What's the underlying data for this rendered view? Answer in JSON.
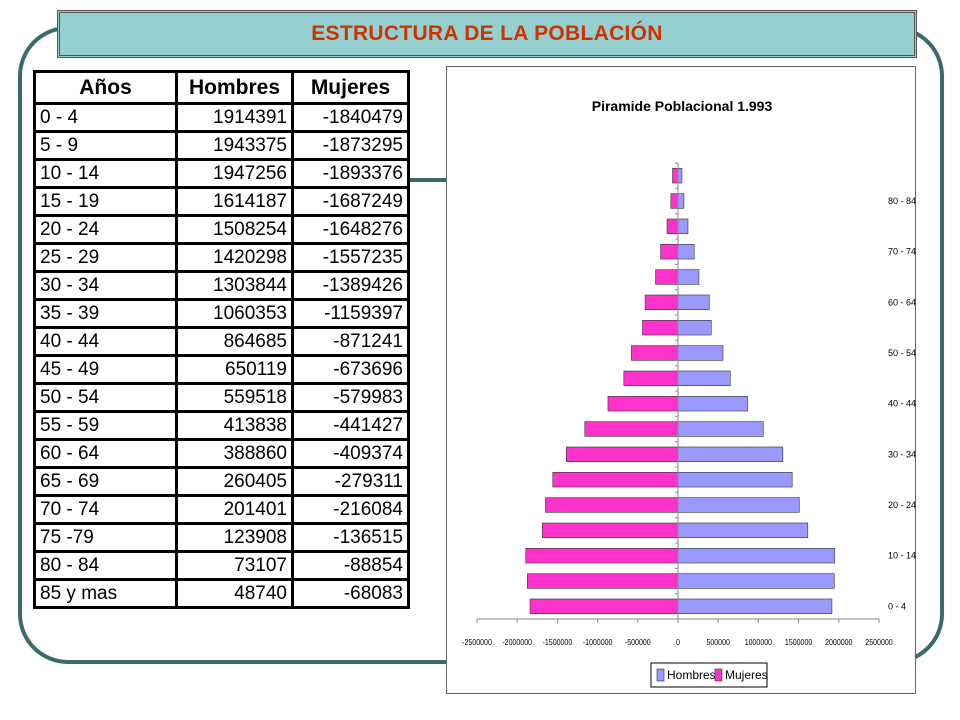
{
  "slide": {
    "title": "ESTRUCTURA DE LA POBLACIÓN",
    "title_color": "#cc3300",
    "title_bg": "#96cfcf",
    "frame_color": "#3a6b6b"
  },
  "table": {
    "headers": [
      "Años",
      "Hombres",
      "Mujeres"
    ],
    "rows": [
      [
        "0 - 4",
        "1914391",
        "-1840479"
      ],
      [
        "5 - 9",
        "1943375",
        "-1873295"
      ],
      [
        "10 - 14",
        "1947256",
        "-1893376"
      ],
      [
        "15 - 19",
        "1614187",
        "-1687249"
      ],
      [
        "20 - 24",
        "1508254",
        "-1648276"
      ],
      [
        "25 - 29",
        "1420298",
        "-1557235"
      ],
      [
        "30 - 34",
        "1303844",
        "-1389426"
      ],
      [
        "35 - 39",
        "1060353",
        "-1159397"
      ],
      [
        "40 - 44",
        "864685",
        "-871241"
      ],
      [
        "45 - 49",
        "650119",
        "-673696"
      ],
      [
        "50 - 54",
        "559518",
        "-579983"
      ],
      [
        "55 - 59",
        "413838",
        "-441427"
      ],
      [
        "60 - 64",
        "388860",
        "-409374"
      ],
      [
        "65 - 69",
        "260405",
        "-279311"
      ],
      [
        "70 - 74",
        "201401",
        "-216084"
      ],
      [
        "75 -79",
        "123908",
        "-136515"
      ],
      [
        "80 - 84",
        "73107",
        "-88854"
      ],
      [
        "85 y mas",
        "48740",
        "-68083"
      ]
    ]
  },
  "chart_data": {
    "type": "bar",
    "orientation": "horizontal",
    "title": "Piramide Poblacional 1.993",
    "categories": [
      "0 - 4",
      "5 - 9",
      "10 - 14",
      "15 - 19",
      "20 - 24",
      "25 - 29",
      "30 - 34",
      "35 - 39",
      "40 - 44",
      "45 - 49",
      "50 - 54",
      "55 - 59",
      "60 - 64",
      "65 - 69",
      "70 - 74",
      "75 -79",
      "80 - 84",
      "85 y mas"
    ],
    "axis_category_labels": [
      "0 - 4",
      "10 - 14",
      "20 - 24",
      "30 - 34",
      "40 - 44",
      "50 - 54",
      "60 - 64",
      "70 - 74",
      "80 - 84"
    ],
    "series": [
      {
        "name": "Hombres",
        "color": "#9999ff",
        "values": [
          1914391,
          1943375,
          1947256,
          1614187,
          1508254,
          1420298,
          1303844,
          1060353,
          864685,
          650119,
          559518,
          413838,
          388860,
          260405,
          201401,
          123908,
          73107,
          48740
        ]
      },
      {
        "name": "Mujeres",
        "color": "#ff33cc",
        "values": [
          -1840479,
          -1873295,
          -1893376,
          -1687249,
          -1648276,
          -1557235,
          -1389426,
          -1159397,
          -871241,
          -673696,
          -579983,
          -441427,
          -409374,
          -279311,
          -216084,
          -136515,
          -88854,
          -68083
        ]
      }
    ],
    "x_ticks": [
      -2500000,
      -2000000,
      -1500000,
      -1000000,
      -500000,
      0,
      500000,
      1000000,
      1500000,
      2000000,
      2500000
    ],
    "xlim": [
      -2500000,
      2500000
    ],
    "grid": false,
    "legend": "bottom"
  }
}
